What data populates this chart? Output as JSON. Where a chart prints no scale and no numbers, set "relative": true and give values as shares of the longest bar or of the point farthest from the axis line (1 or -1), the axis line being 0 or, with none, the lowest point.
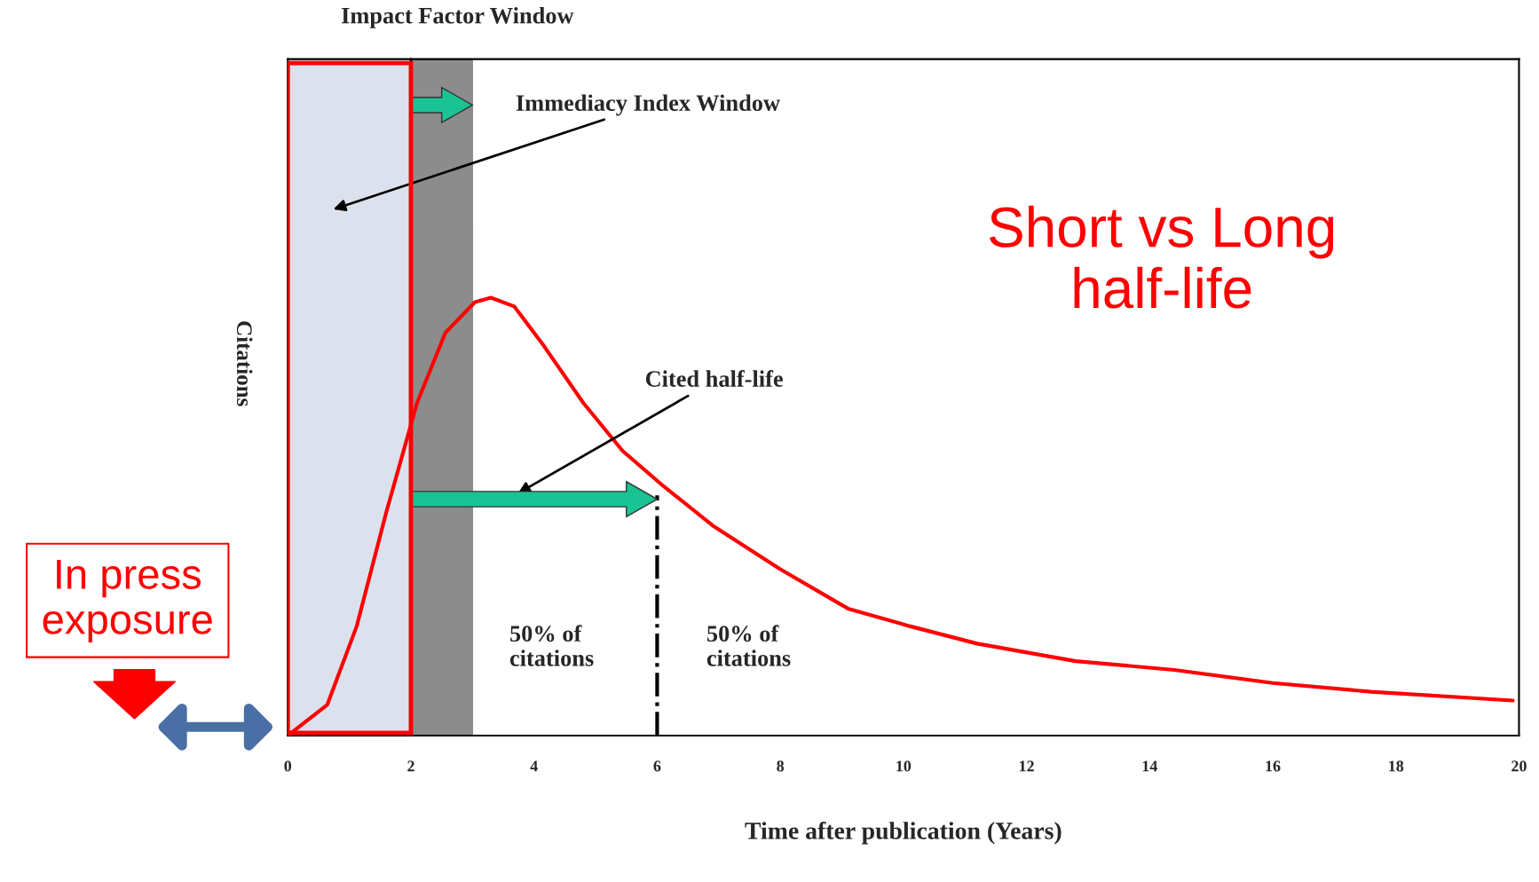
{
  "chart_data": {
    "type": "line",
    "relative": true,
    "xlabel": "Time after publication (Years)",
    "ylabel": "Citations",
    "x": [
      0,
      0.64,
      1.12,
      1.6,
      2.1,
      2.56,
      3.04,
      3.3,
      3.68,
      4.16,
      4.8,
      5.44,
      6.1,
      6.9,
      8.0,
      9.1,
      10.1,
      11.2,
      12.8,
      14.4,
      16.0,
      17.6,
      19.9
    ],
    "series": [
      {
        "color": "#ff0000",
        "values": [
          0,
          0.07,
          0.25,
          0.51,
          0.76,
          0.92,
          0.99,
          1.0,
          0.98,
          0.89,
          0.76,
          0.65,
          0.57,
          0.48,
          0.38,
          0.29,
          0.25,
          0.21,
          0.17,
          0.15,
          0.12,
          0.1,
          0.08
        ]
      }
    ],
    "xlim": [
      0,
      20
    ],
    "xticks": [
      0,
      2,
      4,
      6,
      8,
      10,
      12,
      14,
      16,
      18,
      20
    ],
    "bands": [
      {
        "axis": "x",
        "from": 0,
        "to": 2,
        "color": "#d9dfeb"
      },
      {
        "axis": "x",
        "from": 2,
        "to": 3,
        "color": "#8c8c8c"
      }
    ],
    "ref_lines": [
      {
        "axis": "x",
        "value": 6,
        "color": "#000000",
        "line_style": "dashdot"
      }
    ],
    "annotations": [
      "Impact Factor Window",
      "Immediacy Index Window",
      "Cited half-life",
      "50% of\ncitations",
      "50% of\ncitations",
      "Short vs Long\nhalf-life",
      "In press\nexposure"
    ],
    "grid": false,
    "legend": false
  }
}
